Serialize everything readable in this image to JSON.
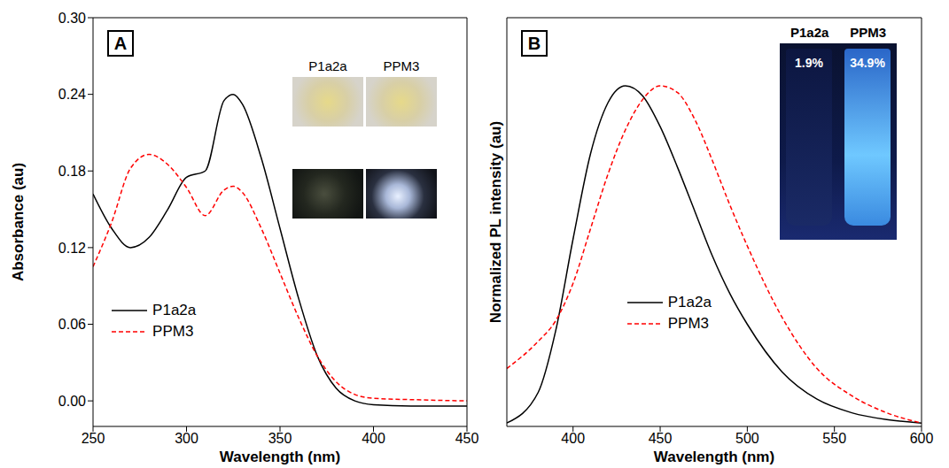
{
  "chart_data": [
    {
      "type": "line",
      "title": "A",
      "x_label": "Wavelength (nm)",
      "y_label": "Absorbance (au)",
      "x": [
        250,
        260,
        270,
        280,
        290,
        300,
        310,
        320,
        325,
        330,
        340,
        350,
        360,
        370,
        380,
        390,
        400,
        420,
        450
      ],
      "series": [
        {
          "name": "P1a2a",
          "color": "#000000",
          "line_style": "solid",
          "values": [
            0.162,
            0.135,
            0.12,
            0.128,
            0.15,
            0.175,
            0.18,
            0.235,
            0.24,
            0.232,
            0.19,
            0.135,
            0.08,
            0.035,
            0.01,
            0.0,
            -0.003,
            -0.004,
            -0.004
          ]
        },
        {
          "name": "PPM3",
          "color": "#ff0000",
          "line_style": "dashed",
          "values": [
            0.105,
            0.14,
            0.182,
            0.193,
            0.185,
            0.167,
            0.145,
            0.165,
            0.168,
            0.163,
            0.135,
            0.1,
            0.065,
            0.035,
            0.015,
            0.005,
            0.002,
            0.001,
            0.0
          ]
        }
      ],
      "xlim": [
        250,
        450
      ],
      "xticks": [
        250,
        300,
        350,
        400,
        450
      ],
      "ylim": [
        -0.02,
        0.3
      ],
      "yticks": [
        {
          "value": 0,
          "label": "0.00"
        },
        {
          "value": 0.06,
          "label": "0.06"
        },
        {
          "value": 0.12,
          "label": "0.12"
        },
        {
          "value": 0.18,
          "label": "0.18"
        },
        {
          "value": 0.24,
          "label": "0.24"
        },
        {
          "value": 0.3,
          "label": "0.30"
        }
      ],
      "legend": "center left",
      "inset": {
        "labels": [
          "P1a2a",
          "PPM3"
        ]
      }
    },
    {
      "type": "line",
      "title": "B",
      "x_label": "Wavelength (nm)",
      "y_label": "Normalized PL intensity (au)",
      "x": [
        362,
        380,
        390,
        400,
        410,
        420,
        430,
        440,
        450,
        460,
        470,
        480,
        490,
        500,
        520,
        540,
        560,
        580,
        600
      ],
      "series": [
        {
          "name": "P1a2a",
          "color": "#000000",
          "line_style": "solid",
          "values": [
            0.01,
            0.1,
            0.28,
            0.55,
            0.8,
            0.95,
            1.0,
            0.97,
            0.88,
            0.76,
            0.63,
            0.5,
            0.39,
            0.3,
            0.16,
            0.08,
            0.04,
            0.02,
            0.01
          ]
        },
        {
          "name": "PPM3",
          "color": "#ff0000",
          "line_style": "dashed",
          "values": [
            0.17,
            0.25,
            0.31,
            0.42,
            0.58,
            0.74,
            0.87,
            0.96,
            1.0,
            0.98,
            0.9,
            0.78,
            0.65,
            0.53,
            0.32,
            0.17,
            0.09,
            0.04,
            0.01
          ]
        }
      ],
      "xlim": [
        362,
        600
      ],
      "xticks": [
        400,
        450,
        500,
        550,
        600
      ],
      "ylim": [
        0,
        1.2
      ],
      "tick_labels": "x",
      "legend": "center",
      "inset": {
        "labels": [
          "P1a2a",
          "PPM3"
        ],
        "values": [
          1.9,
          34.9
        ],
        "value_labels": [
          "1.9%",
          "34.9%"
        ]
      }
    }
  ]
}
